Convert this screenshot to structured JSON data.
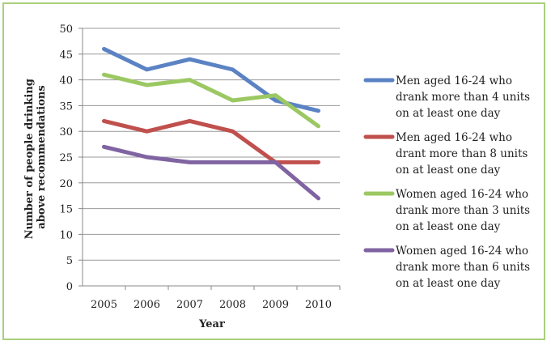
{
  "chart_data": {
    "type": "line",
    "title": "",
    "xlabel": "Year",
    "ylabel": "Number of people drinking above recommendations",
    "categories": [
      "2005",
      "2006",
      "2007",
      "2008",
      "2009",
      "2010"
    ],
    "ylim": [
      0,
      50
    ],
    "yticks": [
      0,
      5,
      10,
      15,
      20,
      25,
      30,
      35,
      40,
      45,
      50
    ],
    "grid": true,
    "legend_position": "right",
    "series": [
      {
        "name": "Men aged 16-24 who drank more than 4 units on at least one day",
        "lines": [
          "Men aged 16-24 who",
          "drank more than 4 units",
          "on at least one day"
        ],
        "color": "#5b83c4",
        "values": [
          46,
          42,
          44,
          42,
          36,
          34
        ]
      },
      {
        "name": "Men aged 16-24 who drant more than 8 units on at least one day",
        "lines": [
          "Men aged 16-24 who",
          "drant more than 8 units",
          "on at least one day"
        ],
        "color": "#c0504d",
        "values": [
          32,
          30,
          32,
          30,
          24,
          24
        ]
      },
      {
        "name": "Women aged 16-24 who drank more than 3 units on at least one day",
        "lines": [
          "Women aged 16-24 who",
          "drank more than 3 units",
          "on at least one day"
        ],
        "color": "#9bc862",
        "values": [
          41,
          39,
          40,
          36,
          37,
          31
        ]
      },
      {
        "name": "Women aged 16-24 who drank more than 6 units on at least one day",
        "lines": [
          "Women aged 16-24 who",
          "drank more than 6 units",
          "on at least one day"
        ],
        "color": "#8064a2",
        "values": [
          27,
          25,
          24,
          24,
          24,
          17
        ]
      }
    ]
  }
}
